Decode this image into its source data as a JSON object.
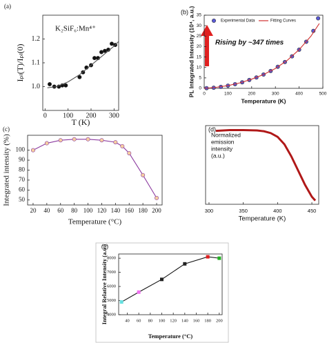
{
  "chart_data": [
    {
      "type": "scatter",
      "label": "(a)",
      "title": "K₂SiF₆:Mn⁴⁺",
      "xlabel": "T (K)",
      "ylabel": "Iₚₗ(T)/Iₚₗ(0)",
      "xlim": [
        -10,
        320
      ],
      "ylim": [
        0.9,
        1.3
      ],
      "xticks": [
        0,
        100,
        200,
        300
      ],
      "yticks": [
        {
          "value": 1,
          "label": "1.0"
        },
        1.1,
        1.2
      ],
      "series": [
        {
          "style": "markers",
          "marker": "circle",
          "color": "#111111",
          "x": [
            20,
            40,
            60,
            75,
            90,
            150,
            165,
            180,
            200,
            215,
            230,
            245,
            260,
            275,
            290,
            305
          ],
          "values": [
            1.01,
            1.0,
            1.0,
            1.005,
            1.005,
            1.04,
            1.06,
            1.08,
            1.09,
            1.12,
            1.12,
            1.145,
            1.15,
            1.155,
            1.18,
            1.175
          ]
        },
        {
          "style": "line",
          "color": "#555555",
          "x": [
            10,
            50,
            100,
            150,
            200,
            250,
            300,
            320
          ],
          "values": [
            0.995,
            1.0,
            1.02,
            1.05,
            1.09,
            1.13,
            1.17,
            1.19
          ]
        }
      ]
    },
    {
      "type": "scatter",
      "label": "(b)",
      "xlabel": "Temperature (K)",
      "ylabel": "PL Integrated Intensity (10⁴, a.u.)",
      "annotation": "Rising by ~347 times",
      "legend": "top",
      "xlim": [
        0,
        500
      ],
      "ylim": [
        0,
        35
      ],
      "xticks": [
        0,
        100,
        200,
        300,
        400,
        500
      ],
      "yticks": [
        0,
        5,
        10,
        15,
        20,
        25,
        30,
        35
      ],
      "series": [
        {
          "name": "Experimental Data",
          "style": "markers",
          "marker": "circle",
          "color": "#5a5ad6",
          "x": [
            10,
            40,
            70,
            100,
            130,
            160,
            190,
            220,
            250,
            280,
            310,
            340,
            370,
            400,
            430,
            460,
            480
          ],
          "values": [
            0.1,
            0.3,
            0.7,
            1.3,
            2.0,
            2.9,
            4.0,
            5.2,
            6.6,
            8.3,
            10.3,
            12.6,
            15.3,
            18.5,
            22.3,
            27.5,
            33.5
          ]
        },
        {
          "name": "Fitting Curves",
          "style": "line",
          "color": "#d03030",
          "x": [
            0,
            50,
            100,
            150,
            200,
            250,
            300,
            350,
            400,
            450,
            485
          ],
          "values": [
            0,
            0.5,
            1.3,
            2.6,
            4.4,
            6.6,
            9.5,
            13.4,
            18.5,
            25,
            31
          ]
        }
      ]
    },
    {
      "type": "line",
      "label": "(c)",
      "xlabel": "Temperature (°C)",
      "ylabel": "Integrated intensity (%)",
      "xlim": [
        12,
        208
      ],
      "ylim": [
        45,
        115
      ],
      "xticks": [
        20,
        40,
        60,
        80,
        100,
        120,
        140,
        160,
        180,
        200
      ],
      "yticks": [
        50,
        60,
        70,
        80,
        90,
        100
      ],
      "series": [
        {
          "style": "line+markers",
          "marker": "circle",
          "color": "#8b3a9f",
          "marker_fill": "#f5cfa0",
          "x": [
            20,
            40,
            60,
            80,
            100,
            120,
            140,
            150,
            160,
            180,
            200
          ],
          "values": [
            100,
            107,
            110,
            111,
            111,
            110,
            108,
            104,
            97,
            75,
            52
          ]
        }
      ]
    },
    {
      "type": "line",
      "label": "(d)",
      "xlabel": "Temperature (K)",
      "ylabel": [
        "Normalized",
        "emission",
        "intensity",
        "(a.u.)"
      ],
      "xlim": [
        295,
        460
      ],
      "ylim": [
        0,
        1.05
      ],
      "xticks": [
        300,
        350,
        400,
        450
      ],
      "series": [
        {
          "style": "line",
          "color": "#b01818",
          "x": [
            310,
            330,
            350,
            370,
            380,
            390,
            400,
            410,
            420,
            430,
            440,
            450,
            455
          ],
          "values": [
            0.98,
            0.99,
            0.99,
            0.985,
            0.975,
            0.95,
            0.9,
            0.8,
            0.64,
            0.45,
            0.26,
            0.1,
            0.05
          ]
        }
      ]
    },
    {
      "type": "line",
      "label": "(e)",
      "xlabel": "Temperature (°C)",
      "ylabel": "Integral Relative Intensity (a.u.)",
      "xlim": [
        25,
        205
      ],
      "ylim": [
        4000,
        8300
      ],
      "xticks": [
        40,
        60,
        80,
        100,
        120,
        140,
        160,
        180,
        200
      ],
      "yticks": [
        4000,
        5000,
        6000,
        7000,
        8000
      ],
      "series": [
        {
          "style": "line+markers",
          "marker": "square",
          "color": "#111111",
          "point_colors": [
            "#66e0e0",
            "#f070f0",
            "#222222",
            "#222222",
            "#e02020",
            "#22b022"
          ],
          "x": [
            30,
            60,
            100,
            140,
            180,
            200
          ],
          "values": [
            4900,
            5600,
            6500,
            7600,
            8100,
            8000
          ]
        }
      ]
    }
  ]
}
